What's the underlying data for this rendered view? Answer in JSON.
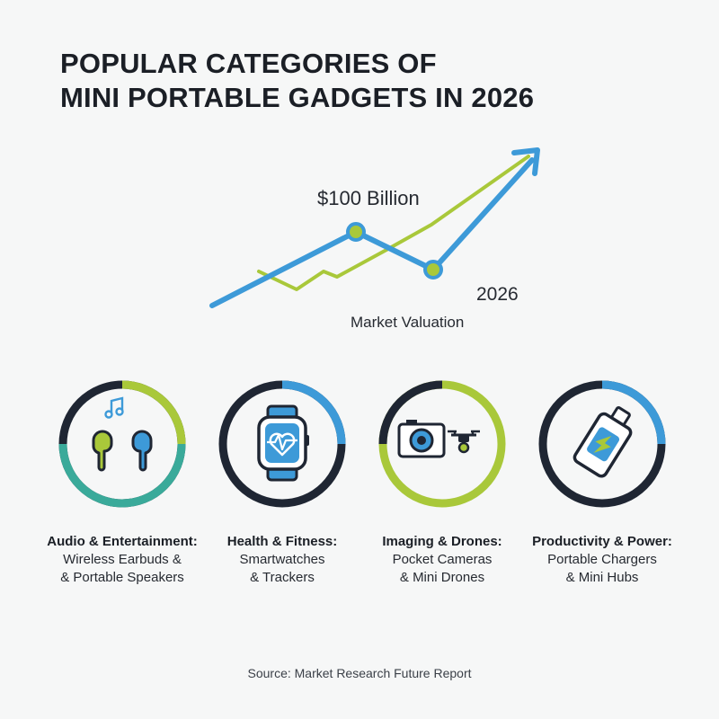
{
  "title": {
    "line1": "POPULAR CATEGORIES OF",
    "line2": "MINI PORTABLE GADGETS IN 2026"
  },
  "trend": {
    "value_label": "$100 Billion",
    "year_label": "2026",
    "metric_label": "Market Valuation"
  },
  "colors": {
    "blue": "#3d9ad8",
    "green": "#a9c83a",
    "teal": "#3aaa9a",
    "dark": "#1f2633"
  },
  "categories": [
    {
      "title": "Audio & Entertainment:",
      "line1": "Wireless Earbuds &",
      "line2": "& Portable Speakers",
      "icon": "earbuds-music-icon"
    },
    {
      "title": "Health & Fitness:",
      "line1": "Smartwatches",
      "line2": "& Trackers",
      "icon": "smartwatch-heart-icon"
    },
    {
      "title": "Imaging & Drones:",
      "line1": "Pocket Cameras",
      "line2": "& Mini Drones",
      "icon": "camera-drone-icon"
    },
    {
      "title": "Productivity & Power:",
      "line1": "Portable Chargers",
      "line2": "& Mini Hubs",
      "icon": "power-bank-icon"
    }
  ],
  "source": "Source: Market Research Future Report"
}
